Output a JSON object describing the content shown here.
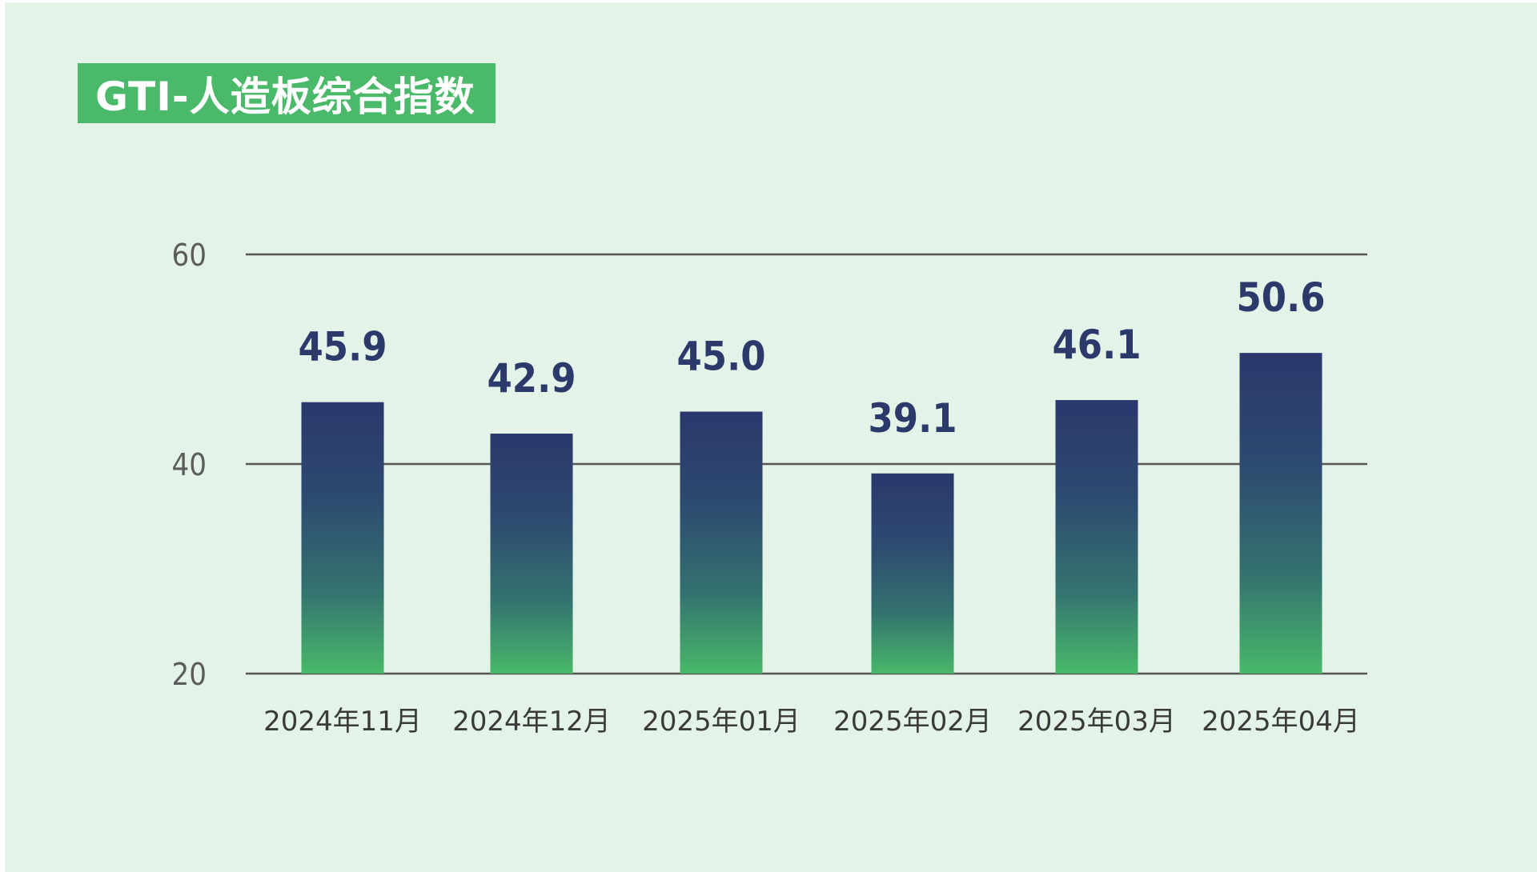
{
  "title": "GTI-人造板综合指数",
  "colors": {
    "background": "#e3f3e7",
    "title_bg": "#4bb96a",
    "bar_top": "#2b386c",
    "bar_bottom": "#4bb96a",
    "value_label": "#2b3a6b",
    "gridline": "#555555"
  },
  "chart_data": {
    "type": "bar",
    "title": "GTI-人造板综合指数",
    "categories": [
      "2024年11月",
      "2024年12月",
      "2025年01月",
      "2025年02月",
      "2025年03月",
      "2025年04月"
    ],
    "values": [
      45.9,
      42.9,
      45.0,
      39.1,
      46.1,
      50.6
    ],
    "value_labels": [
      "45.9",
      "42.9",
      "45.0",
      "39.1",
      "46.1",
      "50.6"
    ],
    "yticks": [
      "20",
      "40",
      "60"
    ],
    "ylim": [
      20,
      60
    ],
    "xlabel": "",
    "ylabel": "",
    "grid": true,
    "legend": "none"
  }
}
